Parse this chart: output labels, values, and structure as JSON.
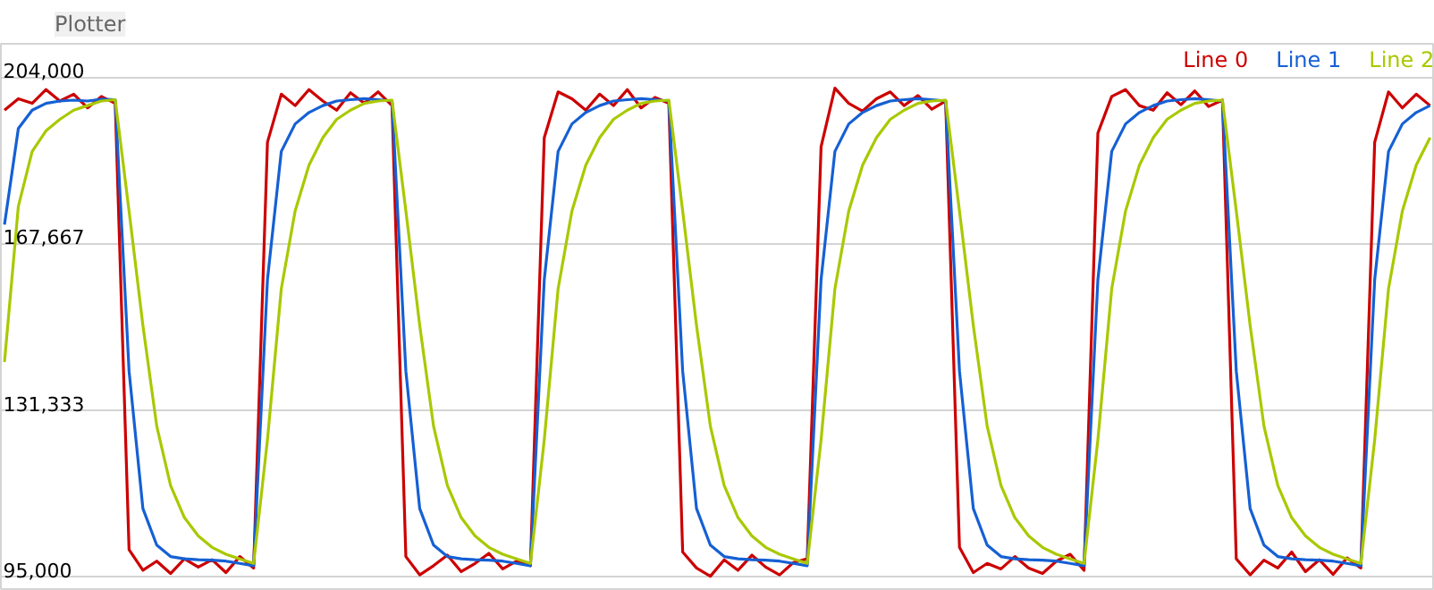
{
  "chart_data": {
    "type": "line",
    "title": "Plotter",
    "categories": [
      null,
      null,
      null,
      null,
      null,
      null,
      null,
      null,
      null,
      null,
      null,
      null,
      null,
      null,
      null,
      null,
      null,
      null,
      null,
      null,
      null,
      null,
      null,
      null,
      null,
      null,
      null,
      null,
      null,
      null,
      null,
      null,
      null,
      null,
      null,
      null,
      null,
      null,
      null,
      null,
      null,
      null,
      null,
      null,
      null,
      null,
      null,
      null,
      null,
      null,
      null,
      null,
      null,
      null,
      null,
      null,
      null,
      null,
      null,
      null,
      null,
      null,
      null,
      null,
      null,
      null,
      null,
      null,
      null,
      null,
      null,
      null,
      null,
      null,
      null,
      null,
      null,
      null,
      null,
      null,
      null,
      null,
      null,
      null,
      null,
      null,
      null,
      null,
      null,
      null,
      null,
      null,
      null,
      null,
      null,
      null,
      null,
      null,
      null,
      null,
      null,
      null,
      null,
      null
    ],
    "ylim": [
      92000,
      211500
    ],
    "yticks": [
      {
        "value": 95000,
        "label": "95,000"
      },
      {
        "value": 131333,
        "label": "131,333"
      },
      {
        "value": 167667,
        "label": "167,667"
      },
      {
        "value": 204000,
        "label": "204,000"
      }
    ],
    "grid": "y",
    "legend": "top right",
    "marker": "none",
    "line_style": "solid",
    "series": [
      {
        "name": "Line 0",
        "color": "#cc0000",
        "values": [
          197000,
          199500,
          198500,
          201500,
          199000,
          200500,
          197500,
          200000,
          198500,
          101000,
          96500,
          98500,
          95800,
          99000,
          97200,
          98800,
          96000,
          99500,
          97000,
          190000,
          200500,
          198000,
          201500,
          199000,
          197000,
          200800,
          198500,
          201000,
          198000,
          99500,
          95500,
          97500,
          99800,
          96200,
          98000,
          100200,
          96800,
          98500,
          97500,
          191000,
          201000,
          199500,
          197000,
          200500,
          198000,
          201500,
          197500,
          199800,
          198500,
          100500,
          97000,
          95200,
          98800,
          96500,
          99800,
          97200,
          95500,
          98200,
          99000,
          189000,
          201800,
          198500,
          196800,
          199500,
          201000,
          198000,
          200200,
          197200,
          199000,
          101500,
          96000,
          98000,
          96800,
          99500,
          97000,
          95800,
          98500,
          100000,
          96500,
          192000,
          200000,
          201500,
          198000,
          197000,
          200800,
          198200,
          201200,
          197800,
          199200,
          99000,
          95500,
          98700,
          97000,
          100500,
          96200,
          98800,
          95600,
          99200,
          97000,
          190000,
          201000,
          197500,
          200500,
          198000
        ]
      },
      {
        "name": "Line 1",
        "color": "#1560d4",
        "values": [
          172000,
          193000,
          197000,
          198500,
          199000,
          199200,
          199000,
          199400,
          199300,
          140000,
          110000,
          102000,
          99500,
          99000,
          98800,
          98700,
          98500,
          98000,
          97500,
          160000,
          188000,
          194000,
          196500,
          198000,
          199000,
          199300,
          199500,
          199300,
          199000,
          140000,
          110000,
          102000,
          99500,
          99000,
          98800,
          98700,
          98500,
          98000,
          97500,
          160000,
          188000,
          194000,
          196500,
          198000,
          199000,
          199300,
          199500,
          199300,
          199000,
          140000,
          110000,
          102000,
          99500,
          99000,
          98800,
          98700,
          98500,
          98000,
          97500,
          160000,
          188000,
          194000,
          196500,
          198000,
          199000,
          199300,
          199500,
          199300,
          199000,
          140000,
          110000,
          102000,
          99500,
          99000,
          98800,
          98700,
          98500,
          98000,
          97500,
          160000,
          188000,
          194000,
          196500,
          198000,
          199000,
          199300,
          199500,
          199300,
          199000,
          140000,
          110000,
          102000,
          99500,
          99000,
          98800,
          98700,
          98500,
          98000,
          97500,
          160000,
          188000,
          194000,
          196500,
          198000
        ]
      },
      {
        "name": "Line 2",
        "color": "#aac800",
        "values": [
          142000,
          176000,
          188000,
          192500,
          195000,
          197000,
          198000,
          199000,
          199300,
          175000,
          150000,
          128000,
          115000,
          108000,
          104000,
          101500,
          100000,
          99000,
          98000,
          125000,
          158000,
          175000,
          185000,
          191000,
          195000,
          197000,
          198500,
          199000,
          199200,
          175000,
          150000,
          128000,
          115000,
          108000,
          104000,
          101500,
          100000,
          99000,
          98000,
          125000,
          158000,
          175000,
          185000,
          191000,
          195000,
          197000,
          198500,
          199000,
          199200,
          175000,
          150000,
          128000,
          115000,
          108000,
          104000,
          101500,
          100000,
          99000,
          98000,
          125000,
          158000,
          175000,
          185000,
          191000,
          195000,
          197000,
          198500,
          199000,
          199200,
          175000,
          150000,
          128000,
          115000,
          108000,
          104000,
          101500,
          100000,
          99000,
          98000,
          125000,
          158000,
          175000,
          185000,
          191000,
          195000,
          197000,
          198500,
          199000,
          199200,
          175000,
          150000,
          128000,
          115000,
          108000,
          104000,
          101500,
          100000,
          99000,
          98000,
          125000,
          158000,
          175000,
          185000,
          191000
        ]
      }
    ]
  }
}
